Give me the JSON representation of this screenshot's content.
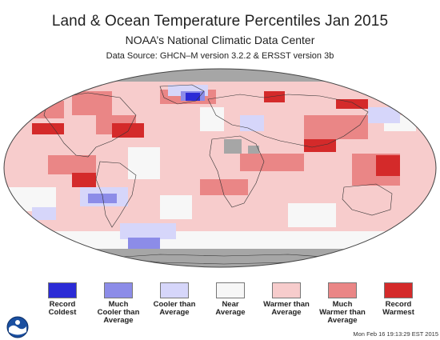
{
  "header": {
    "title": "Land & Ocean Temperature Percentiles Jan 2015",
    "subtitle": "NOAA’s National Climatic Data Center",
    "source": "Data Source: GHCN–M version 3.2.2 & ERSST version 3b"
  },
  "legend": [
    {
      "line1": "Record",
      "line2": "Coldest",
      "line3": "",
      "color": "#2b2bd6"
    },
    {
      "line1": "Much",
      "line2": "Cooler than",
      "line3": "Average",
      "color": "#8c8ce8"
    },
    {
      "line1": "Cooler than",
      "line2": "Average",
      "line3": "",
      "color": "#d6d6fa"
    },
    {
      "line1": "Near",
      "line2": "Average",
      "line3": "",
      "color": "#f7f7f7"
    },
    {
      "line1": "Warmer than",
      "line2": "Average",
      "line3": "",
      "color": "#f7cccc"
    },
    {
      "line1": "Much",
      "line2": "Warmer than",
      "line3": "Average",
      "color": "#ea8686"
    },
    {
      "line1": "Record",
      "line2": "Warmest",
      "line3": "",
      "color": "#d42a2a"
    }
  ],
  "footer": {
    "timestamp": "Mon Feb 16 19:13:29 EST 2015"
  },
  "colors": {
    "no_data": "#a6a6a6",
    "record_coldest": "#2b2bd6",
    "much_cooler": "#8c8ce8",
    "cooler": "#d6d6fa",
    "near": "#f7f7f7",
    "warmer": "#f7cccc",
    "much_warmer": "#ea8686",
    "record_warmest": "#d42a2a"
  },
  "logo": "noaa-logo"
}
